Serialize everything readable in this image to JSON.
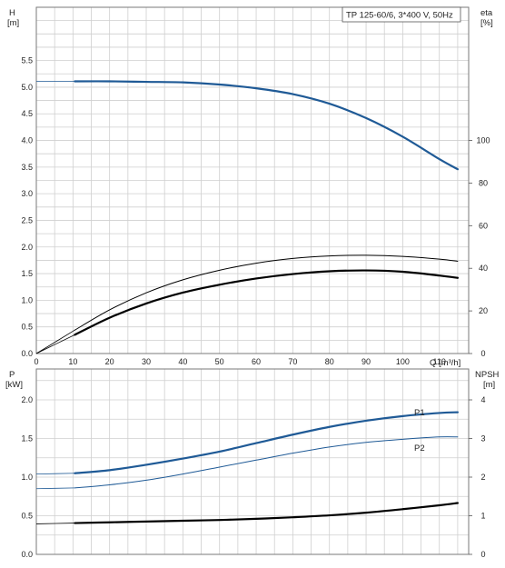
{
  "chart_data": [
    {
      "type": "line",
      "title": "TP 125-60/6, 3*400 V, 50Hz",
      "xlabel": "Q [m³/h]",
      "xlim": [
        0,
        118
      ],
      "xticks": [
        0,
        10,
        20,
        30,
        40,
        50,
        60,
        70,
        80,
        90,
        100,
        110
      ],
      "left_axis": {
        "label_line1": "H",
        "label_line2": "[m]",
        "ylim": [
          0,
          6.5
        ],
        "ticks": [
          0.0,
          0.5,
          1.0,
          1.5,
          2.0,
          2.5,
          3.0,
          3.5,
          4.0,
          4.5,
          5.0,
          5.5
        ],
        "tick_labels": [
          "0.0",
          "0.5",
          "1.0",
          "1.5",
          "2.0",
          "2.5",
          "3.0",
          "3.5",
          "4.0",
          "4.5",
          "5.0",
          "5.5"
        ]
      },
      "right_axis": {
        "label_line1": "eta",
        "label_line2": "[%]",
        "ylim": [
          0,
          162.5
        ],
        "ticks": [
          0,
          20,
          40,
          60,
          80,
          100
        ],
        "tick_labels": [
          "0",
          "20",
          "40",
          "60",
          "80",
          "100"
        ]
      },
      "grid": true,
      "series": [
        {
          "axis": "left",
          "color": "#1f5a96",
          "width": "thick",
          "x": [
            0,
            10.5,
            20,
            30,
            40,
            50,
            60,
            70,
            80,
            90,
            100,
            110,
            115
          ],
          "y": [
            5.11,
            5.11,
            5.11,
            5.1,
            5.09,
            5.05,
            4.98,
            4.87,
            4.69,
            4.42,
            4.07,
            3.65,
            3.46
          ],
          "dashed_until": 10.5
        },
        {
          "axis": "right",
          "color": "#000000",
          "width": "thin",
          "x": [
            0,
            10.5,
            20,
            30,
            40,
            50,
            60,
            70,
            80,
            90,
            100,
            110,
            115
          ],
          "y": [
            0,
            11,
            20.5,
            28.5,
            34.6,
            39.1,
            42.4,
            44.6,
            45.8,
            46.1,
            45.6,
            44.3,
            43.3
          ],
          "dashed_until": 10.5
        },
        {
          "axis": "right",
          "color": "#000000",
          "width": "thick",
          "x": [
            0,
            10.5,
            20,
            30,
            40,
            50,
            60,
            70,
            80,
            90,
            100,
            110,
            115
          ],
          "y": [
            0,
            8.8,
            16.8,
            23.5,
            28.6,
            32.3,
            35.2,
            37.3,
            38.6,
            39.0,
            38.4,
            36.6,
            35.5
          ],
          "dashed_until": 10.5
        }
      ]
    },
    {
      "type": "line",
      "left_axis": {
        "label_line1": "P",
        "label_line2": "[kW]",
        "ylim": [
          0,
          2.4
        ],
        "ticks": [
          0.0,
          0.5,
          1.0,
          1.5,
          2.0
        ],
        "tick_labels": [
          "0.0",
          "0.5",
          "1.0",
          "1.5",
          "2.0"
        ]
      },
      "right_axis": {
        "label_line1": "NPSH",
        "label_line2": "[m]",
        "ylim": [
          0,
          4.8
        ],
        "ticks": [
          0,
          1,
          2,
          3,
          4
        ],
        "tick_labels": [
          "0",
          "1",
          "2",
          "3",
          "4"
        ]
      },
      "xlim": [
        0,
        118
      ],
      "xticks": [
        0,
        10,
        20,
        30,
        40,
        50,
        60,
        70,
        80,
        90,
        100,
        110
      ],
      "grid": true,
      "series": [
        {
          "name": "P1",
          "axis": "left",
          "color": "#1f5a96",
          "width": "thick",
          "x": [
            0,
            10.5,
            20,
            30,
            40,
            50,
            60,
            70,
            80,
            90,
            100,
            110,
            115
          ],
          "y": [
            1.04,
            1.05,
            1.09,
            1.16,
            1.24,
            1.33,
            1.44,
            1.55,
            1.65,
            1.73,
            1.79,
            1.83,
            1.84
          ],
          "dashed_until": 10.5
        },
        {
          "name": "P2",
          "axis": "left",
          "color": "#1f5a96",
          "width": "thin",
          "x": [
            0,
            10.5,
            20,
            30,
            40,
            50,
            60,
            70,
            80,
            90,
            100,
            110,
            115
          ],
          "y": [
            0.85,
            0.86,
            0.9,
            0.96,
            1.04,
            1.13,
            1.22,
            1.31,
            1.39,
            1.45,
            1.49,
            1.52,
            1.52
          ],
          "dashed_until": 10.5
        },
        {
          "axis": "right",
          "color": "#000000",
          "width": "thick",
          "x": [
            0,
            10.5,
            20,
            30,
            40,
            50,
            60,
            70,
            80,
            90,
            100,
            110,
            115
          ],
          "y": [
            0.79,
            0.81,
            0.83,
            0.85,
            0.87,
            0.89,
            0.92,
            0.96,
            1.01,
            1.08,
            1.17,
            1.27,
            1.33
          ],
          "dashed_until": 10.5
        }
      ]
    }
  ]
}
